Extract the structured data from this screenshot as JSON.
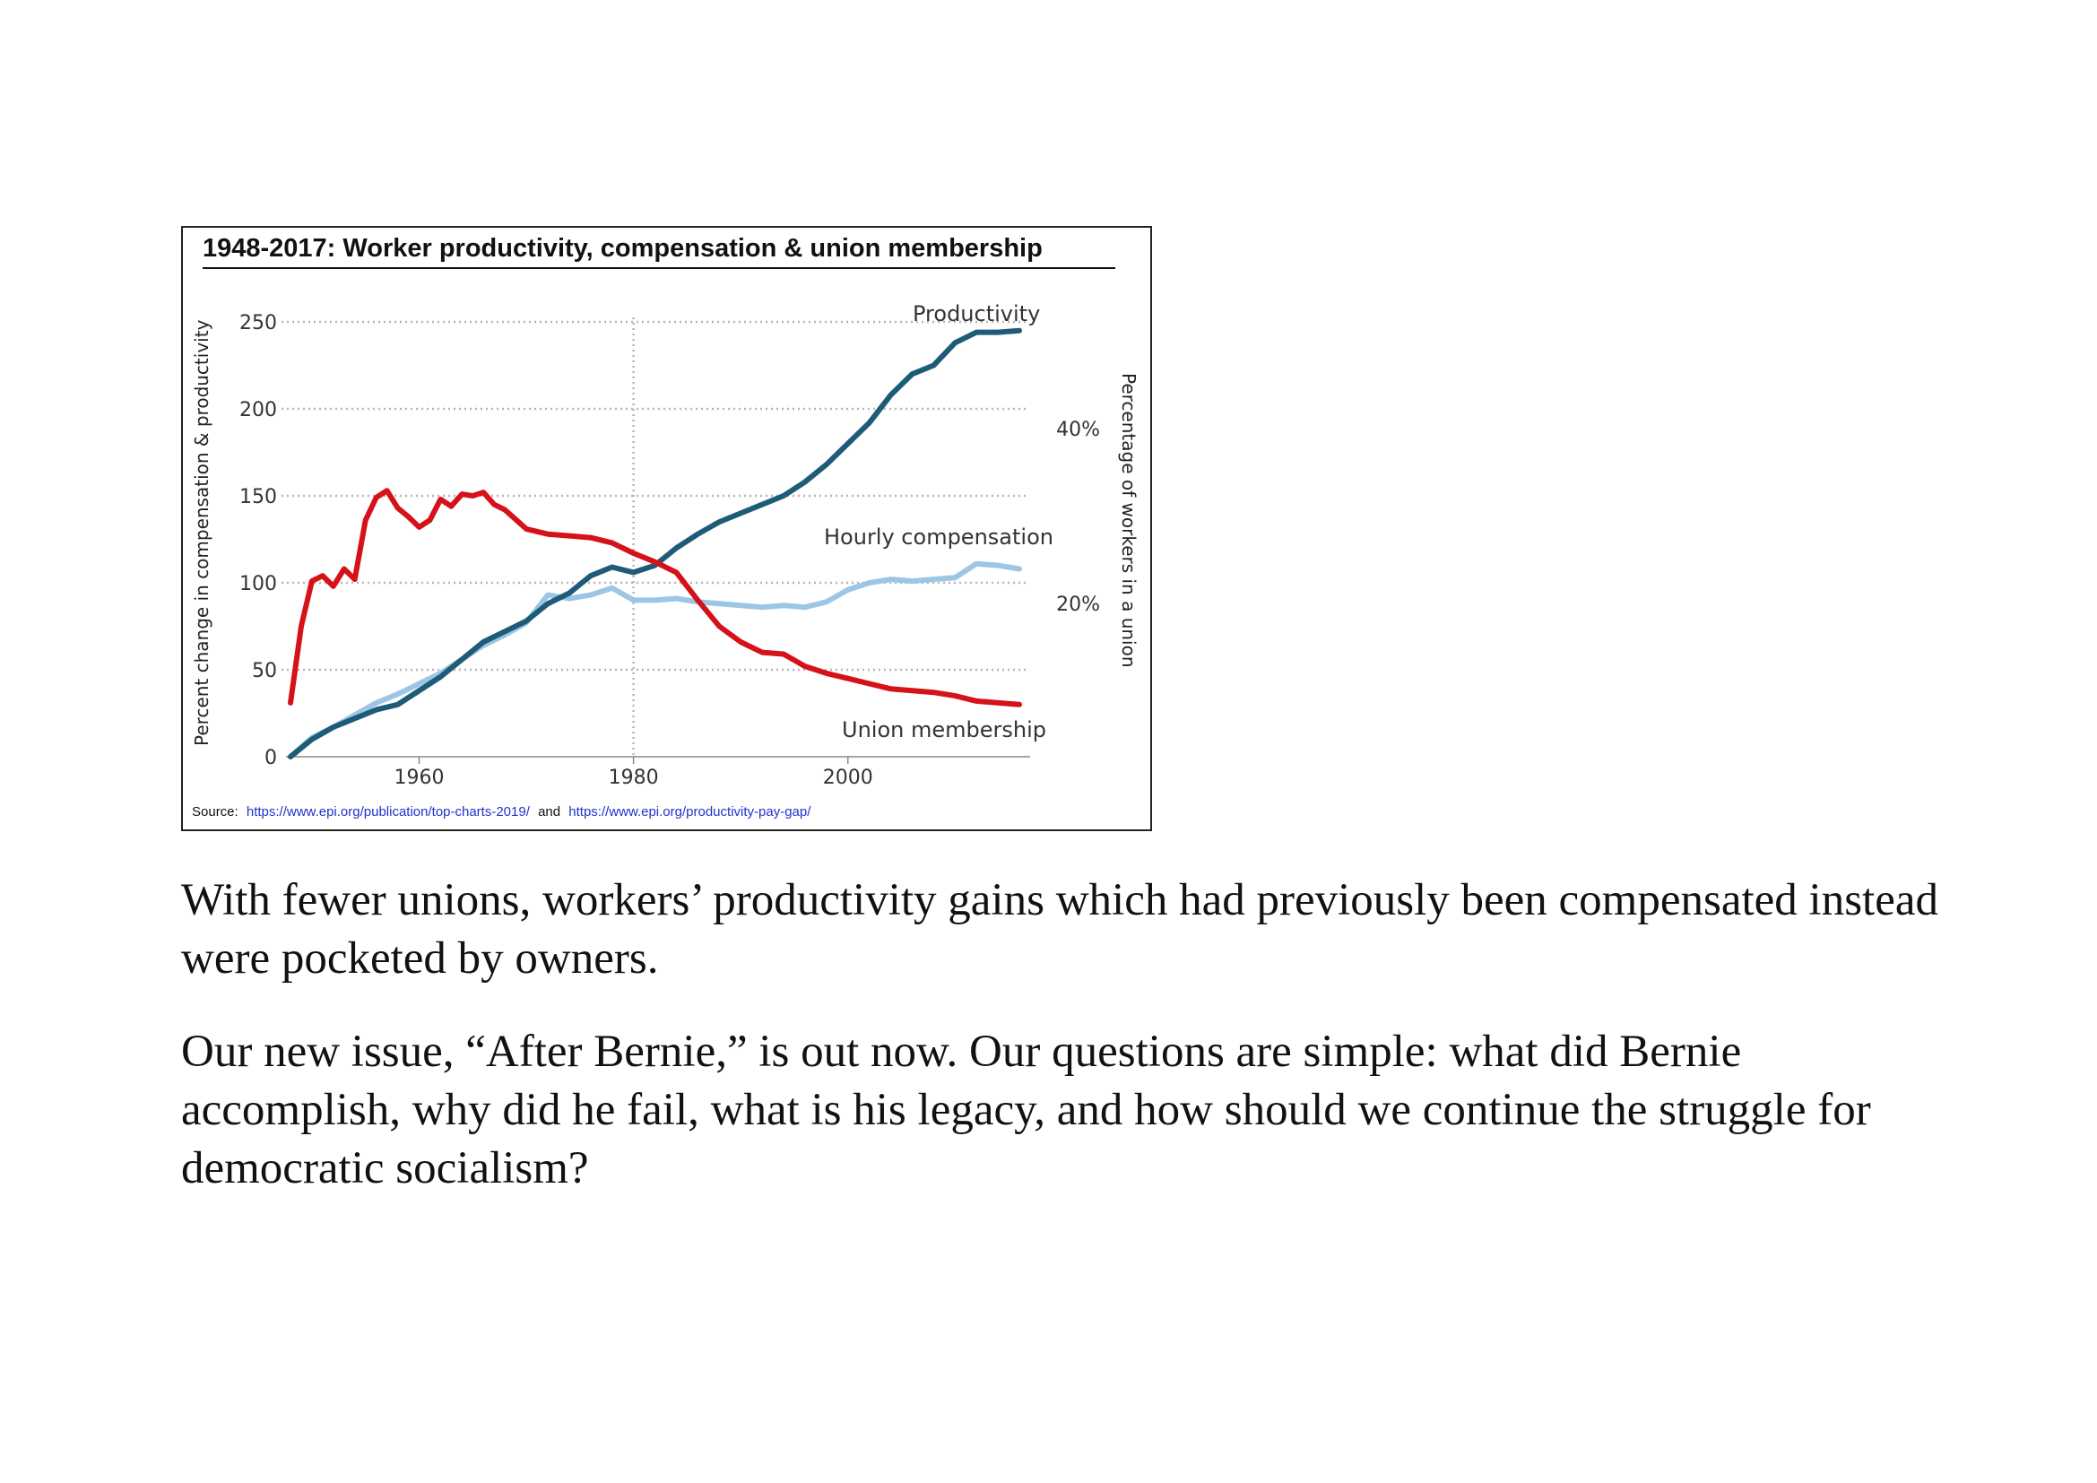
{
  "chart_data": {
    "type": "line",
    "title": "1948-2017: Worker productivity, compensation & union membership",
    "ylabel": "Percent change in compensation & productivity",
    "y2label": "Percentage of workers in a union",
    "ylim": [
      0,
      250
    ],
    "y_ticks": [
      0,
      50,
      100,
      150,
      200,
      250
    ],
    "y2_ticks": [
      "20%",
      "40%"
    ],
    "xlim": [
      1948,
      2017
    ],
    "x_ticks": [
      1960,
      1980,
      2000
    ],
    "grid": true,
    "series": [
      {
        "name": "Productivity",
        "color": "#1e5b78",
        "x": [
          1948,
          1950,
          1952,
          1954,
          1956,
          1958,
          1960,
          1962,
          1964,
          1966,
          1968,
          1970,
          1972,
          1974,
          1976,
          1978,
          1980,
          1982,
          1984,
          1986,
          1988,
          1990,
          1992,
          1994,
          1996,
          1998,
          2000,
          2002,
          2004,
          2006,
          2008,
          2010,
          2012,
          2014,
          2016
        ],
        "y": [
          0,
          10,
          17,
          22,
          27,
          30,
          38,
          46,
          56,
          66,
          72,
          78,
          88,
          94,
          104,
          109,
          106,
          110,
          120,
          128,
          135,
          140,
          145,
          150,
          158,
          168,
          180,
          192,
          208,
          220,
          225,
          238,
          244,
          244,
          245
        ]
      },
      {
        "name": "Hourly compensation",
        "color": "#9cc6e4",
        "x": [
          1948,
          1950,
          1952,
          1954,
          1956,
          1958,
          1960,
          1962,
          1964,
          1966,
          1968,
          1970,
          1972,
          1974,
          1976,
          1978,
          1980,
          1982,
          1984,
          1986,
          1988,
          1990,
          1992,
          1994,
          1996,
          1998,
          2000,
          2002,
          2004,
          2006,
          2008,
          2010,
          2012,
          2014,
          2016
        ],
        "y": [
          0,
          11,
          17,
          24,
          31,
          36,
          42,
          48,
          56,
          64,
          70,
          77,
          93,
          91,
          93,
          97,
          90,
          90,
          91,
          89,
          88,
          87,
          86,
          87,
          86,
          89,
          96,
          100,
          102,
          101,
          102,
          103,
          111,
          110,
          108
        ]
      },
      {
        "name": "Union membership",
        "color": "#d5121a",
        "x": [
          1948,
          1949,
          1950,
          1951,
          1952,
          1953,
          1954,
          1955,
          1956,
          1957,
          1958,
          1959,
          1960,
          1961,
          1962,
          1963,
          1964,
          1965,
          1966,
          1967,
          1968,
          1970,
          1972,
          1974,
          1976,
          1978,
          1980,
          1982,
          1984,
          1986,
          1988,
          1990,
          1992,
          1994,
          1996,
          1998,
          2000,
          2002,
          2004,
          2006,
          2008,
          2010,
          2012,
          2014,
          2016
        ],
        "y": [
          31,
          75,
          101,
          104,
          98,
          108,
          102,
          136,
          149,
          153,
          143,
          138,
          132,
          136,
          148,
          144,
          151,
          150,
          152,
          145,
          142,
          131,
          128,
          127,
          126,
          123,
          117,
          112,
          106,
          90,
          75,
          66,
          60,
          59,
          52,
          48,
          45,
          42,
          39,
          38,
          37,
          35,
          32,
          31,
          30
        ]
      }
    ],
    "annotations": [
      "Productivity",
      "Hourly compensation",
      "Union membership"
    ]
  },
  "source": {
    "prefix": "Source:",
    "link1": "https://www.epi.org/publication/top-charts-2019/",
    "middle": "and",
    "link2": "https://www.epi.org/productivity-pay-gap/"
  },
  "paragraphs": [
    "With fewer unions, workers’ productivity gains which had previously been compensated instead were pocketed by owners.",
    "Our new issue, “After Bernie,” is out now. Our questions are simple: what did Bernie accomplish, why did he fail, what is his legacy, and how should we continue the struggle for democratic socialism?"
  ]
}
